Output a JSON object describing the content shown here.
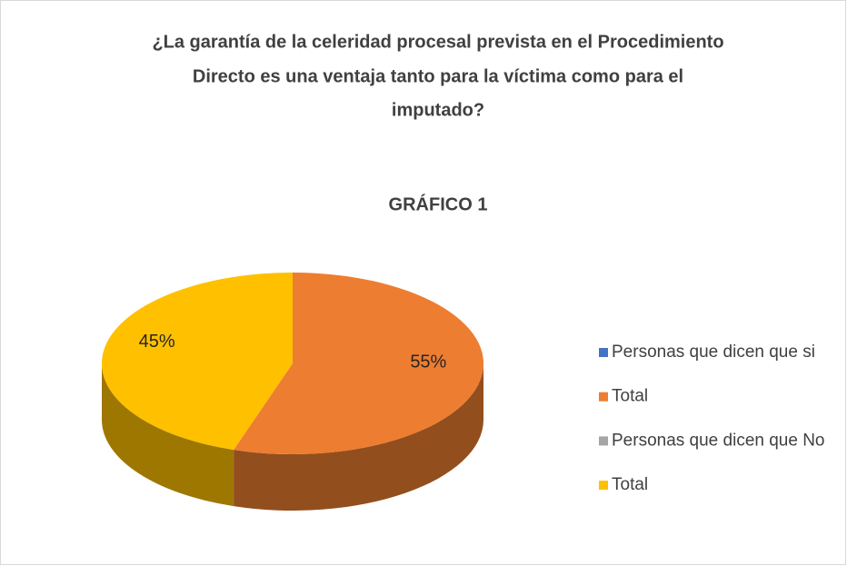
{
  "chart_data": {
    "type": "pie",
    "title": [
      "¿La garantía de la celeridad procesal prevista en el Procedimiento",
      "Directo es una ventaja tanto para la víctima como para el",
      "imputado?"
    ],
    "subtitle": "GRÁFICO 1",
    "categories": [
      "Personas que dicen que si",
      "Total",
      "Personas que dicen que No",
      "Total"
    ],
    "values": [
      0,
      55,
      0,
      45
    ],
    "value_labels": [
      null,
      "55%",
      null,
      "45%"
    ],
    "colors": [
      "#4472c4",
      "#ed7d31",
      "#a5a5a5",
      "#ffc000"
    ],
    "legend": "right"
  }
}
